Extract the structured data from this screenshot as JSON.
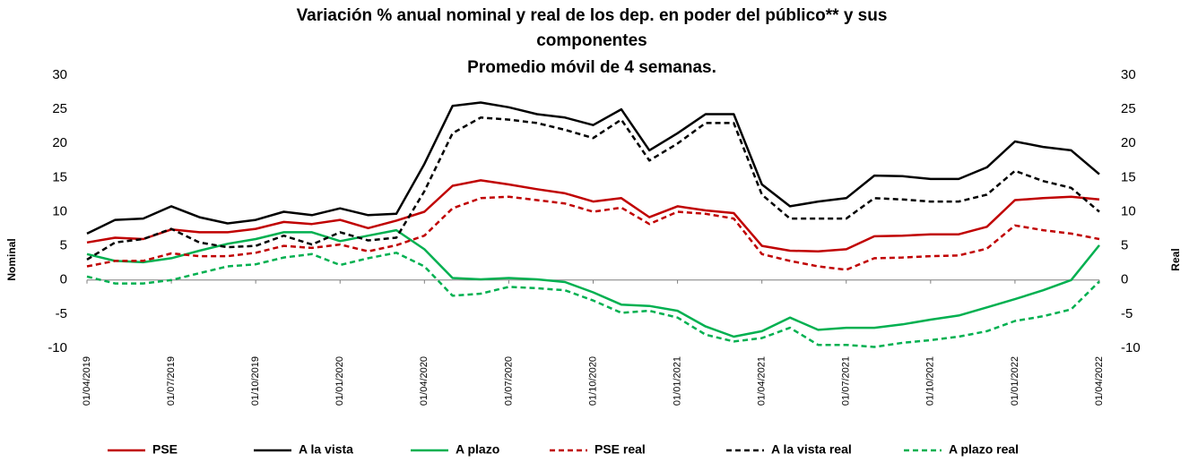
{
  "chart_data": {
    "type": "line",
    "title": [
      "Variación % anual nominal y real de los dep. en poder del público** y sus",
      "componentes"
    ],
    "subtitle": "Promedio móvil de 4 semanas.",
    "ylabel": "Nominal",
    "y2label": "Real",
    "categories": [
      "01/04/2019",
      null,
      null,
      "01/07/2019",
      null,
      null,
      "01/10/2019",
      null,
      null,
      "01/01/2020",
      null,
      null,
      "01/04/2020",
      null,
      null,
      "01/07/2020",
      null,
      null,
      "01/10/2020",
      null,
      null,
      "01/01/2021",
      null,
      null,
      "01/04/2021",
      null,
      null,
      "01/07/2021",
      null,
      null,
      "01/10/2021",
      null,
      null,
      "01/01/2022",
      null,
      null,
      "01/04/2022"
    ],
    "ylim": [
      -10,
      30
    ],
    "yticks": [
      -10,
      -5,
      0,
      5,
      10,
      15,
      20,
      25,
      30
    ],
    "y2lim": [
      -10,
      30
    ],
    "y2ticks": [
      -10,
      -5,
      0,
      5,
      10,
      15,
      20,
      25,
      30
    ],
    "legend": "bottom",
    "series": [
      {
        "name": "PSE",
        "color": "#c00000",
        "dash": false,
        "values": [
          5.5,
          6.2,
          6,
          7.4,
          7,
          7,
          7.5,
          8.5,
          8.2,
          8.8,
          7.6,
          8.7,
          10,
          13.8,
          14.6,
          14,
          13.3,
          12.7,
          11.5,
          12,
          9.2,
          10.8,
          10.2,
          9.8,
          5,
          4.3,
          4.2,
          4.5,
          6.4,
          6.5,
          6.7,
          6.7,
          7.8,
          11.7,
          12,
          12.2,
          11.8
        ]
      },
      {
        "name": "A la vista",
        "color": "#000000",
        "dash": false,
        "values": [
          6.8,
          8.8,
          9,
          10.8,
          9.2,
          8.3,
          8.8,
          10,
          9.5,
          10.5,
          9.5,
          9.7,
          17,
          25.5,
          26,
          25.3,
          24.3,
          23.8,
          22.7,
          25,
          19,
          21.5,
          24.3,
          24.3,
          14,
          10.8,
          11.5,
          12,
          15.3,
          15.2,
          14.8,
          14.8,
          16.5,
          20.3,
          19.5,
          19,
          15.5
        ]
      },
      {
        "name": "A plazo",
        "color": "#00b050",
        "dash": false,
        "values": [
          3.8,
          2.8,
          2.6,
          3.2,
          4.3,
          5.3,
          6,
          7,
          7,
          5.7,
          6.5,
          7.3,
          4.5,
          0.3,
          0.1,
          0.3,
          0.1,
          -0.3,
          -1.8,
          -3.6,
          -3.8,
          -4.5,
          -6.8,
          -8.3,
          -7.5,
          -5.5,
          -7.3,
          -7,
          -7,
          -6.5,
          -5.8,
          -5.2,
          -4,
          -2.8,
          -1.5,
          0,
          5.1
        ]
      },
      {
        "name": "PSE real",
        "color": "#c00000",
        "dash": true,
        "axis": "y2",
        "values": [
          2,
          2.8,
          2.8,
          3.9,
          3.5,
          3.5,
          4,
          5,
          4.7,
          5.2,
          4.2,
          5.1,
          6.5,
          10.5,
          12,
          12.2,
          11.7,
          11.2,
          10,
          10.6,
          8.2,
          10,
          9.7,
          9,
          3.8,
          2.8,
          2,
          1.5,
          3.2,
          3.3,
          3.5,
          3.6,
          4.6,
          8,
          7.3,
          6.8,
          6
        ]
      },
      {
        "name": "A la vista real",
        "color": "#000000",
        "dash": true,
        "axis": "y2",
        "values": [
          3,
          5.5,
          6,
          7.5,
          5.5,
          4.8,
          5,
          6.5,
          5.2,
          7,
          5.8,
          6.2,
          13,
          21.5,
          23.8,
          23.5,
          23,
          22,
          20.8,
          23.5,
          17.5,
          20,
          23,
          23,
          12.5,
          9,
          9,
          9,
          12,
          11.8,
          11.5,
          11.5,
          12.5,
          16,
          14.5,
          13.5,
          10
        ]
      },
      {
        "name": "A plazo real",
        "color": "#00b050",
        "dash": true,
        "axis": "y2",
        "values": [
          0.5,
          -0.5,
          -0.5,
          0,
          1,
          2,
          2.3,
          3.3,
          3.8,
          2.2,
          3.2,
          4,
          2,
          -2.3,
          -2,
          -1,
          -1.2,
          -1.5,
          -3,
          -4.8,
          -4.5,
          -5.5,
          -8,
          -9,
          -8.5,
          -7,
          -9.5,
          -9.5,
          -9.8,
          -9.2,
          -8.8,
          -8.3,
          -7.5,
          -6,
          -5.3,
          -4.3,
          -0.2
        ]
      }
    ]
  }
}
